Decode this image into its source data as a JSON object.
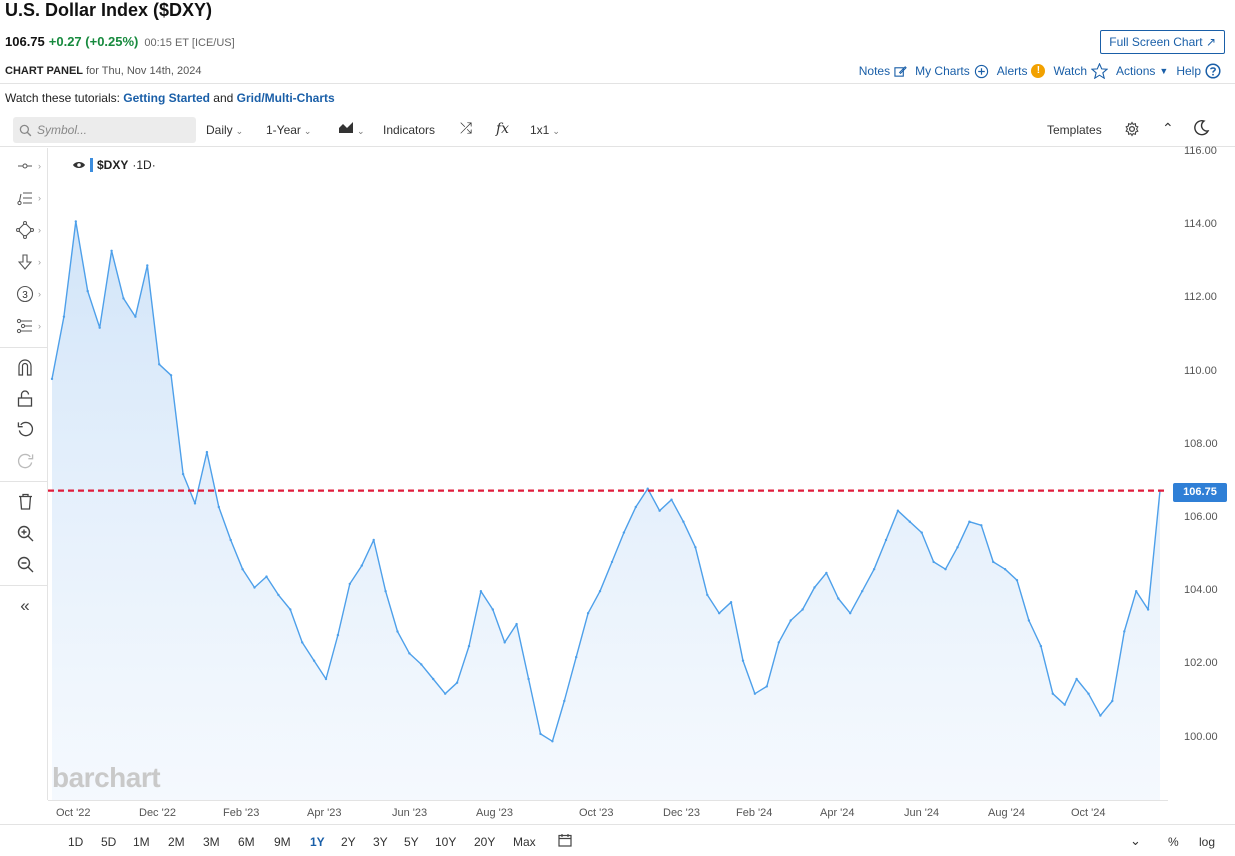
{
  "header": {
    "title": "U.S. Dollar Index ($DXY)",
    "last": "106.75",
    "change": "+0.27 (+0.25%)",
    "time": "00:15 ET [ICE/US]",
    "full_screen_label": "Full Screen Chart ↗"
  },
  "panel": {
    "label": "CHART PANEL",
    "date": "for Thu, Nov 14th, 2024",
    "notes": "Notes",
    "my_charts": "My Charts",
    "alerts": "Alerts",
    "watch": "Watch",
    "actions": "Actions",
    "help": "Help"
  },
  "tutorials": {
    "prefix": "Watch these tutorials:",
    "link1": "Getting Started",
    "and": "and",
    "link2": "Grid/Multi-Charts"
  },
  "toolbar": {
    "symbol_placeholder": "Symbol...",
    "interval": "Daily",
    "period": "1-Year",
    "indicators": "Indicators",
    "fx": "fx",
    "layout": "1x1",
    "templates": "Templates"
  },
  "legend": {
    "symbol": "$DXY",
    "interval": "·1D·"
  },
  "watermark": "barchart",
  "last_price_label": "106.75",
  "range_buttons": [
    "1D",
    "5D",
    "1M",
    "2M",
    "3M",
    "6M",
    "9M",
    "1Y",
    "2Y",
    "3Y",
    "5Y",
    "10Y",
    "20Y",
    "Max"
  ],
  "selected_range": "1Y",
  "bottom_right": {
    "pct": "%",
    "log": "log"
  },
  "colors": {
    "line": "#4ea0ea",
    "fill_top": "#cfe3f8",
    "last_line": "#e01c3c",
    "accent": "#1a5fa8",
    "up": "#178a3e"
  },
  "chart_data": {
    "type": "area",
    "title": "U.S. Dollar Index ($DXY)",
    "xlabel": "",
    "ylabel": "",
    "ylim": [
      98.2,
      116.0
    ],
    "yticks": [
      "116.00",
      "114.00",
      "112.00",
      "110.00",
      "108.00",
      "106.00",
      "104.00",
      "102.00",
      "100.00"
    ],
    "xticks": [
      "Oct '22",
      "Dec '22",
      "Feb '23",
      "Apr '23",
      "Jun '23",
      "Aug '23",
      "Oct '23",
      "Dec '23",
      "Feb '24",
      "Apr '24",
      "Jun '24",
      "Aug '24",
      "Oct '24"
    ],
    "last_value": 106.75,
    "x": [
      "Sep '22",
      "Oct '22",
      "Oct '22",
      "Oct '22",
      "Oct '22",
      "Oct '22",
      "Oct '22",
      "Oct '22",
      "Oct '22",
      "Nov '22",
      "Nov '22",
      "Nov '22",
      "Nov '22",
      "Nov '22",
      "Nov '22",
      "Nov '22",
      "Dec '22",
      "Dec '22",
      "Dec '22",
      "Dec '22",
      "Jan '23",
      "Jan '23",
      "Jan '23",
      "Jan '23",
      "Feb '23",
      "Feb '23",
      "Feb '23",
      "Mar '23",
      "Mar '23",
      "Mar '23",
      "Mar '23",
      "Apr '23",
      "Apr '23",
      "Apr '23",
      "May '23",
      "May '23",
      "May '23",
      "Jun '23",
      "Jun '23",
      "Jun '23",
      "Jul '23",
      "Jul '23",
      "Jul '23",
      "Jul '23",
      "Aug '23",
      "Aug '23",
      "Aug '23",
      "Sep '23",
      "Sep '23",
      "Sep '23",
      "Oct '23",
      "Oct '23",
      "Oct '23",
      "Oct '23",
      "Nov '23",
      "Nov '23",
      "Nov '23",
      "Dec '23",
      "Dec '23",
      "Dec '23",
      "Dec '23",
      "Jan '24",
      "Jan '24",
      "Jan '24",
      "Feb '24",
      "Feb '24",
      "Feb '24",
      "Mar '24",
      "Mar '24",
      "Mar '24",
      "Apr '24",
      "Apr '24",
      "Apr '24",
      "May '24",
      "May '24",
      "May '24",
      "Jun '24",
      "Jun '24",
      "Jun '24",
      "Jul '24",
      "Jul '24",
      "Jul '24",
      "Aug '24",
      "Aug '24",
      "Aug '24",
      "Sep '24",
      "Sep '24",
      "Sep '24",
      "Sep '24",
      "Oct '24",
      "Oct '24",
      "Oct '24",
      "Nov '24",
      "Nov '24"
    ],
    "series": [
      {
        "values": [
          109.8,
          111.5,
          114.1,
          112.2,
          111.2,
          113.3,
          112.0,
          111.5,
          112.9,
          110.2,
          109.9,
          107.2,
          106.4,
          107.8,
          106.3,
          105.4,
          104.6,
          104.1,
          104.4,
          103.9,
          103.5,
          102.6,
          102.1,
          101.6,
          102.8,
          104.2,
          104.7,
          105.4,
          104.0,
          102.9,
          102.3,
          102.0,
          101.6,
          101.2,
          101.5,
          102.5,
          104.0,
          103.5,
          102.6,
          103.1,
          101.6,
          100.1,
          99.9,
          101.0,
          102.2,
          103.4,
          104.0,
          104.8,
          105.6,
          106.3,
          106.8,
          106.2,
          106.5,
          105.9,
          105.2,
          103.9,
          103.4,
          103.7,
          102.1,
          101.2,
          101.4,
          102.6,
          103.2,
          103.5,
          104.1,
          104.5,
          103.8,
          103.4,
          104.0,
          104.6,
          105.4,
          106.2,
          105.9,
          105.6,
          104.8,
          104.6,
          105.2,
          105.9,
          105.8,
          104.8,
          104.6,
          104.3,
          103.2,
          102.5,
          101.2,
          100.9,
          101.6,
          101.2,
          100.6,
          101.0,
          102.9,
          104.0,
          103.5,
          106.75
        ]
      }
    ]
  }
}
